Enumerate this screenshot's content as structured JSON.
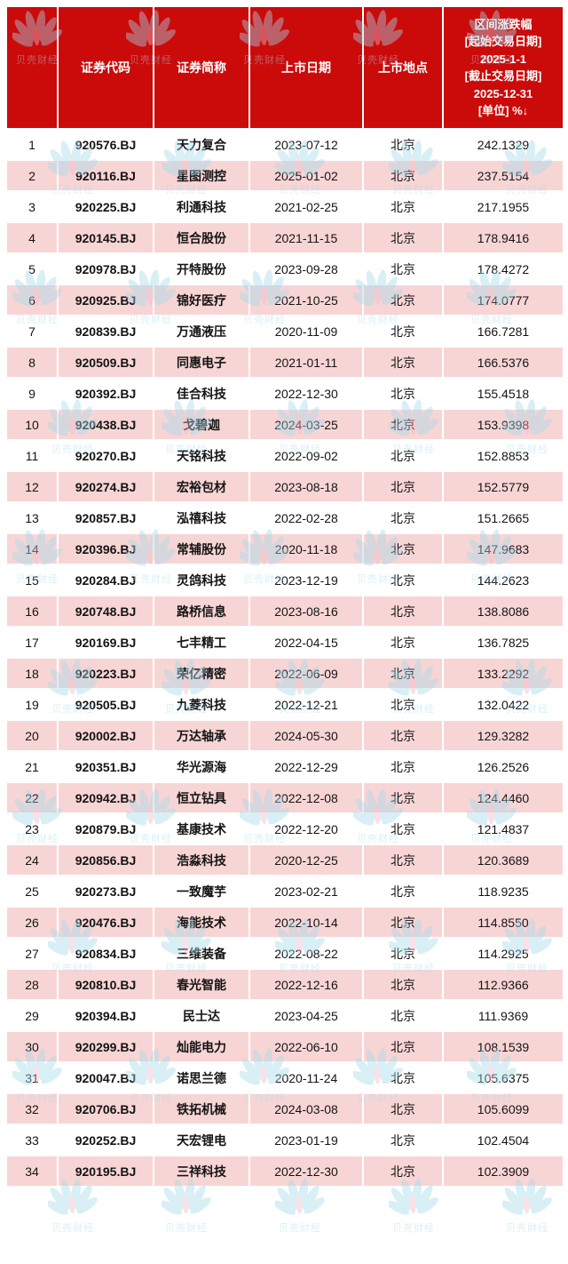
{
  "watermark": {
    "label": "贝壳财经"
  },
  "colors": {
    "header_bg": "#cb0a0a",
    "header_text": "#ffffff",
    "row_bg": "#ffffff",
    "row_alt_bg": "#f8d5d5",
    "grid": "#ffffff",
    "wm_blue": "#a6daec",
    "wm_pink": "#f2b9c8"
  },
  "chart_data": {
    "type": "table",
    "sort": "区间涨跌幅 descending",
    "header": {
      "index": "",
      "code": "证券代码",
      "name": "证券简称",
      "date": "上市日期",
      "place": "上市地点",
      "change_lines": [
        "区间涨跌幅",
        "[起始交易日期]",
        "2025-1-1",
        "[截止交易日期]",
        "2025-12-31",
        "[单位] %↓"
      ]
    },
    "rows": [
      {
        "no": "1",
        "code": "920576.BJ",
        "name": "天力复合",
        "date": "2023-07-12",
        "place": "北京",
        "change": "242.1329"
      },
      {
        "no": "2",
        "code": "920116.BJ",
        "name": "星图测控",
        "date": "2025-01-02",
        "place": "北京",
        "change": "237.5154"
      },
      {
        "no": "3",
        "code": "920225.BJ",
        "name": "利通科技",
        "date": "2021-02-25",
        "place": "北京",
        "change": "217.1955"
      },
      {
        "no": "4",
        "code": "920145.BJ",
        "name": "恒合股份",
        "date": "2021-11-15",
        "place": "北京",
        "change": "178.9416"
      },
      {
        "no": "5",
        "code": "920978.BJ",
        "name": "开特股份",
        "date": "2023-09-28",
        "place": "北京",
        "change": "178.4272"
      },
      {
        "no": "6",
        "code": "920925.BJ",
        "name": "锦好医疗",
        "date": "2021-10-25",
        "place": "北京",
        "change": "174.0777"
      },
      {
        "no": "7",
        "code": "920839.BJ",
        "name": "万通液压",
        "date": "2020-11-09",
        "place": "北京",
        "change": "166.7281"
      },
      {
        "no": "8",
        "code": "920509.BJ",
        "name": "同惠电子",
        "date": "2021-01-11",
        "place": "北京",
        "change": "166.5376"
      },
      {
        "no": "9",
        "code": "920392.BJ",
        "name": "佳合科技",
        "date": "2022-12-30",
        "place": "北京",
        "change": "155.4518"
      },
      {
        "no": "10",
        "code": "920438.BJ",
        "name": "戈碧迦",
        "date": "2024-03-25",
        "place": "北京",
        "change": "153.9398"
      },
      {
        "no": "11",
        "code": "920270.BJ",
        "name": "天铭科技",
        "date": "2022-09-02",
        "place": "北京",
        "change": "152.8853"
      },
      {
        "no": "12",
        "code": "920274.BJ",
        "name": "宏裕包材",
        "date": "2023-08-18",
        "place": "北京",
        "change": "152.5779"
      },
      {
        "no": "13",
        "code": "920857.BJ",
        "name": "泓禧科技",
        "date": "2022-02-28",
        "place": "北京",
        "change": "151.2665"
      },
      {
        "no": "14",
        "code": "920396.BJ",
        "name": "常辅股份",
        "date": "2020-11-18",
        "place": "北京",
        "change": "147.9683"
      },
      {
        "no": "15",
        "code": "920284.BJ",
        "name": "灵鸽科技",
        "date": "2023-12-19",
        "place": "北京",
        "change": "144.2623"
      },
      {
        "no": "16",
        "code": "920748.BJ",
        "name": "路桥信息",
        "date": "2023-08-16",
        "place": "北京",
        "change": "138.8086"
      },
      {
        "no": "17",
        "code": "920169.BJ",
        "name": "七丰精工",
        "date": "2022-04-15",
        "place": "北京",
        "change": "136.7825"
      },
      {
        "no": "18",
        "code": "920223.BJ",
        "name": "荣亿精密",
        "date": "2022-06-09",
        "place": "北京",
        "change": "133.2292"
      },
      {
        "no": "19",
        "code": "920505.BJ",
        "name": "九菱科技",
        "date": "2022-12-21",
        "place": "北京",
        "change": "132.0422"
      },
      {
        "no": "20",
        "code": "920002.BJ",
        "name": "万达轴承",
        "date": "2024-05-30",
        "place": "北京",
        "change": "129.3282"
      },
      {
        "no": "21",
        "code": "920351.BJ",
        "name": "华光源海",
        "date": "2022-12-29",
        "place": "北京",
        "change": "126.2526"
      },
      {
        "no": "22",
        "code": "920942.BJ",
        "name": "恒立钻具",
        "date": "2022-12-08",
        "place": "北京",
        "change": "124.4460"
      },
      {
        "no": "23",
        "code": "920879.BJ",
        "name": "基康技术",
        "date": "2022-12-20",
        "place": "北京",
        "change": "121.4837"
      },
      {
        "no": "24",
        "code": "920856.BJ",
        "name": "浩淼科技",
        "date": "2020-12-25",
        "place": "北京",
        "change": "120.3689"
      },
      {
        "no": "25",
        "code": "920273.BJ",
        "name": "一致魔芋",
        "date": "2023-02-21",
        "place": "北京",
        "change": "118.9235"
      },
      {
        "no": "26",
        "code": "920476.BJ",
        "name": "海能技术",
        "date": "2022-10-14",
        "place": "北京",
        "change": "114.8550"
      },
      {
        "no": "27",
        "code": "920834.BJ",
        "name": "三维装备",
        "date": "2022-08-22",
        "place": "北京",
        "change": "114.2925"
      },
      {
        "no": "28",
        "code": "920810.BJ",
        "name": "春光智能",
        "date": "2022-12-16",
        "place": "北京",
        "change": "112.9366"
      },
      {
        "no": "29",
        "code": "920394.BJ",
        "name": "民士达",
        "date": "2023-04-25",
        "place": "北京",
        "change": "111.9369"
      },
      {
        "no": "30",
        "code": "920299.BJ",
        "name": "灿能电力",
        "date": "2022-06-10",
        "place": "北京",
        "change": "108.1539"
      },
      {
        "no": "31",
        "code": "920047.BJ",
        "name": "诺思兰德",
        "date": "2020-11-24",
        "place": "北京",
        "change": "105.6375"
      },
      {
        "no": "32",
        "code": "920706.BJ",
        "name": "铁拓机械",
        "date": "2024-03-08",
        "place": "北京",
        "change": "105.6099"
      },
      {
        "no": "33",
        "code": "920252.BJ",
        "name": "天宏锂电",
        "date": "2023-01-19",
        "place": "北京",
        "change": "102.4504"
      },
      {
        "no": "34",
        "code": "920195.BJ",
        "name": "三祥科技",
        "date": "2022-12-30",
        "place": "北京",
        "change": "102.3909"
      }
    ]
  }
}
